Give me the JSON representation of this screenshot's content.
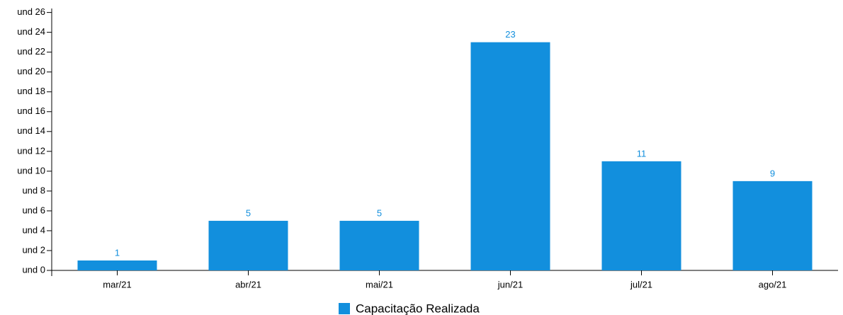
{
  "chart_data": {
    "type": "bar",
    "categories": [
      "mar/21",
      "abr/21",
      "mai/21",
      "jun/21",
      "jul/21",
      "ago/21"
    ],
    "series": [
      {
        "name": "Capacitação Realizada",
        "color": "#128fdd",
        "values": [
          1,
          5,
          5,
          23,
          11,
          9
        ]
      }
    ],
    "ylim": [
      0,
      26.4
    ],
    "yticks": [
      {
        "value": 0,
        "label": "und 0"
      },
      {
        "value": 2,
        "label": "und 2"
      },
      {
        "value": 4,
        "label": "und 4"
      },
      {
        "value": 6,
        "label": "und 6"
      },
      {
        "value": 8,
        "label": "und 8"
      },
      {
        "value": 10,
        "label": "und 10"
      },
      {
        "value": 12,
        "label": "und 12"
      },
      {
        "value": 14,
        "label": "und 14"
      },
      {
        "value": 16,
        "label": "und 16"
      },
      {
        "value": 18,
        "label": "und 18"
      },
      {
        "value": 20,
        "label": "und 20"
      },
      {
        "value": 22,
        "label": "und 22"
      },
      {
        "value": 24,
        "label": "und 24"
      },
      {
        "value": 26,
        "label": "und 26"
      }
    ],
    "grid": false,
    "legend": "bottom"
  }
}
